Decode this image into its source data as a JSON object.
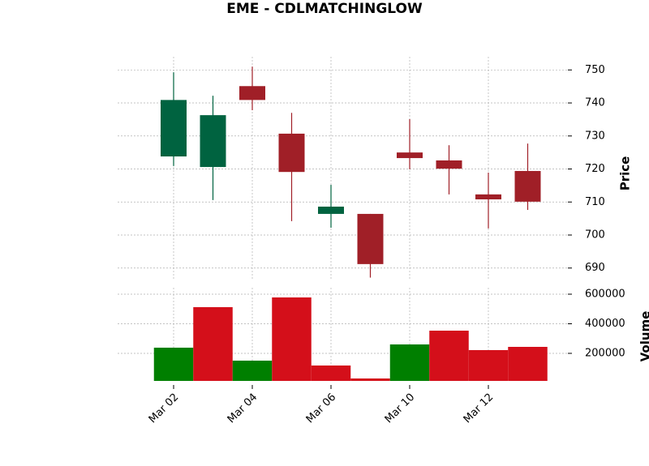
{
  "chart_data": {
    "type": "candlestick",
    "title": "EME - CDLMATCHINGLOW",
    "categories": [
      "Mar 02",
      null,
      "Mar 04",
      null,
      "Mar 06",
      null,
      "Mar 10",
      null,
      "Mar 12",
      null
    ],
    "open": [
      723.8,
      720.6,
      745.1,
      730.7,
      706.4,
      706.4,
      725.0,
      722.6,
      712.3,
      719.4
    ],
    "high": [
      749.3,
      742.2,
      751.0,
      737.0,
      715.2,
      706.4,
      735.1,
      727.2,
      718.9,
      727.7
    ],
    "low": [
      720.9,
      710.6,
      737.8,
      704.2,
      702.2,
      687.1,
      719.9,
      712.3,
      702.0,
      707.6
    ],
    "close": [
      740.9,
      736.3,
      740.9,
      719.1,
      708.6,
      691.2,
      723.3,
      720.1,
      710.8,
      710.1
    ],
    "ylabel": "Price",
    "ylim": [
      686.5,
      754
    ],
    "yticks": [
      690,
      700,
      710,
      720,
      730,
      740,
      750
    ],
    "up_color": "#006340",
    "down_color": "#a01f27",
    "grid": true,
    "volume": {
      "ylabel": "Volume",
      "values": [
        238300,
        512300,
        150700,
        578000,
        117800,
        30100,
        260300,
        353400,
        221900,
        243800
      ],
      "colors": [
        "#007f00",
        "#d40f1a",
        "#007f00",
        "#d40f1a",
        "#d40f1a",
        "#d40f1a",
        "#007f00",
        "#d40f1a",
        "#d40f1a",
        "#d40f1a"
      ],
      "ylim": [
        13700,
        643800
      ],
      "yticks": [
        200000,
        400000,
        600000
      ]
    }
  }
}
